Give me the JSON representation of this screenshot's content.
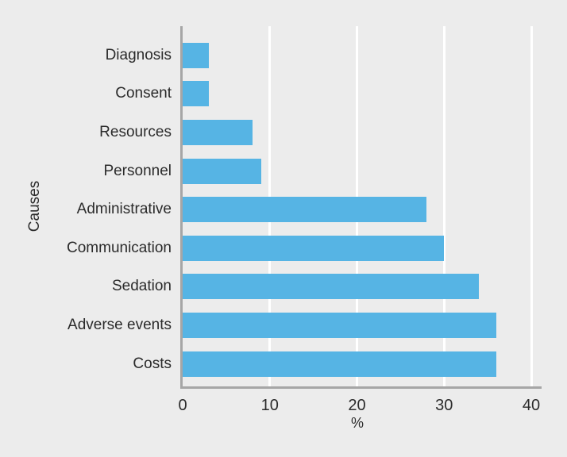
{
  "chart_data": {
    "type": "bar",
    "orientation": "horizontal",
    "title": "",
    "xlabel": "%",
    "ylabel": "Causes",
    "categories": [
      "Diagnosis",
      "Consent",
      "Resources",
      "Personnel",
      "Administrative",
      "Communication",
      "Sedation",
      "Adverse events",
      "Costs"
    ],
    "values": [
      3,
      3,
      8,
      9,
      28,
      30,
      34,
      36,
      36
    ],
    "xlim": [
      0,
      40
    ],
    "xticks": [
      0,
      10,
      20,
      30,
      40
    ],
    "grid": "vertical",
    "legend": "none",
    "colors": {
      "bar": "#56b4e4",
      "axis": "#a6a6a6",
      "gridline": "#ffffff",
      "background": "#ececec",
      "text": "#2b2b2b"
    }
  }
}
